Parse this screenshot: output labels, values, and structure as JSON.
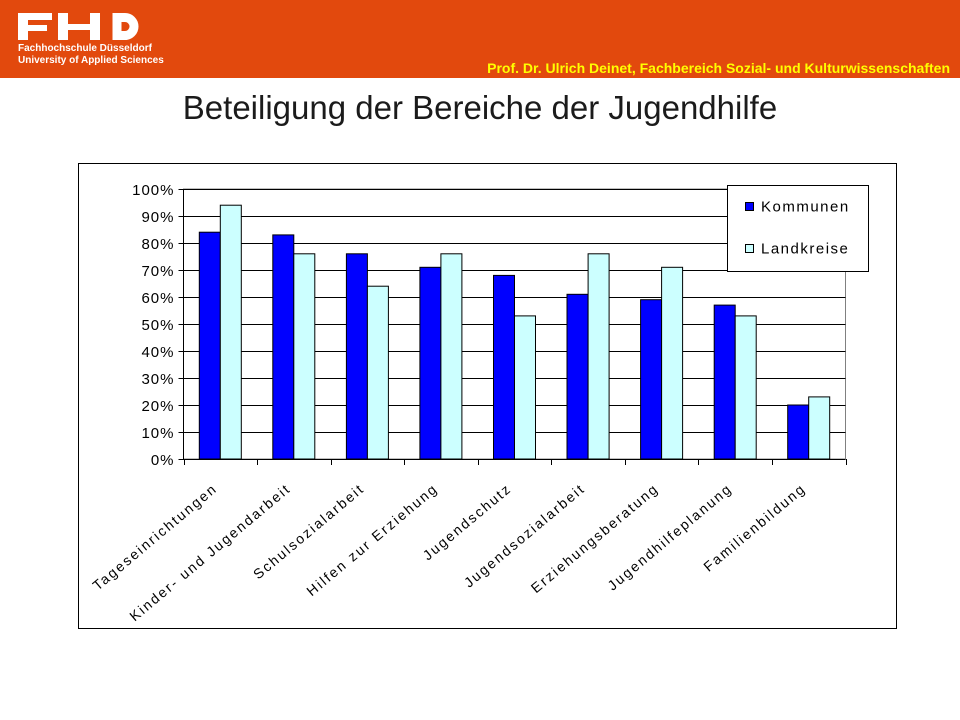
{
  "header": {
    "logo_text": "FHD",
    "institution_line1": "Fachhochschule Düsseldorf",
    "institution_line2": "University of Applied Sciences",
    "author_line": "Prof. Dr. Ulrich Deinet, Fachbereich Sozial- und Kulturwissenschaften",
    "background_color": "#E2490D",
    "author_color": "#FFFF00"
  },
  "slide": {
    "title": "Beteiligung der Bereiche der Jugendhilfe"
  },
  "chart_data": {
    "type": "bar",
    "categories": [
      "Tageseinrichtungen",
      "Kinder- und Jugendarbeit",
      "Schulsozialarbeit",
      "Hilfen zur Erziehung",
      "Jugendschutz",
      "Jugendsozialarbeit",
      "Erziehungsberatung",
      "Jugendhilfeplanung",
      "Familienbildung"
    ],
    "series": [
      {
        "name": "Kommunen",
        "color": "#0000FF",
        "values": [
          84,
          83,
          76,
          71,
          68,
          61,
          59,
          57,
          20
        ]
      },
      {
        "name": "Landkreise",
        "color": "#CCFFFF",
        "values": [
          94,
          76,
          64,
          76,
          53,
          76,
          71,
          53,
          23
        ]
      }
    ],
    "ylim": [
      0,
      100
    ],
    "yticks": [
      "0%",
      "10%",
      "20%",
      "30%",
      "40%",
      "50%",
      "60%",
      "70%",
      "80%",
      "90%",
      "100%"
    ],
    "grid": true,
    "legend_position": "top-right"
  }
}
